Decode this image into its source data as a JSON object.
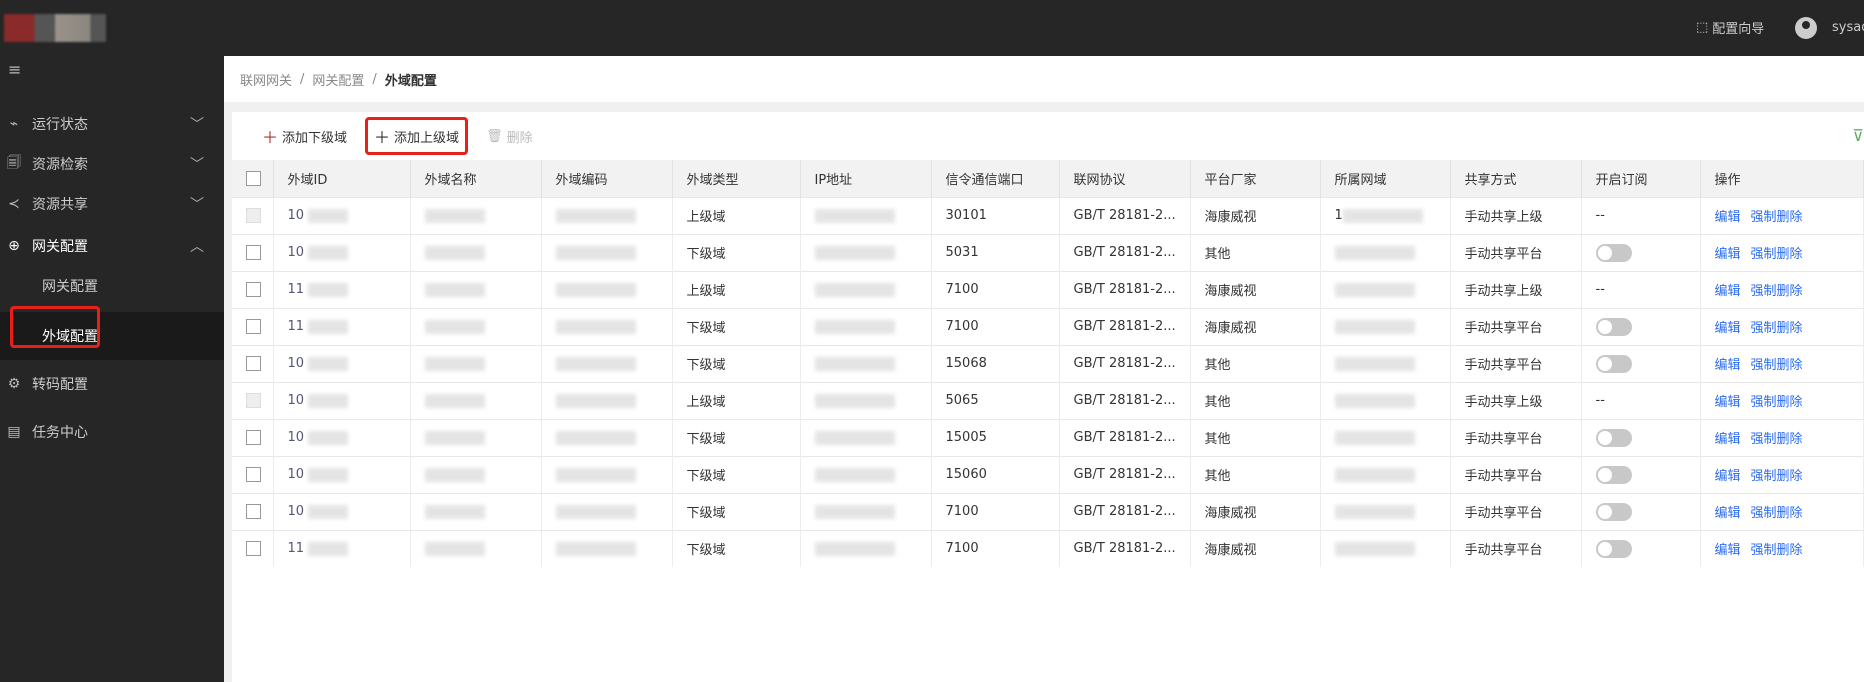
{
  "header": {
    "wizard": "配置向导",
    "user": "sysad"
  },
  "sidebar": {
    "items": [
      {
        "label": "运行状态",
        "icon": "monitor-icon",
        "chevron": "down"
      },
      {
        "label": "资源检索",
        "icon": "search-doc-icon",
        "chevron": "down"
      },
      {
        "label": "资源共享",
        "icon": "share-icon",
        "chevron": "down"
      },
      {
        "label": "网关配置",
        "icon": "globe-icon",
        "chevron": "up",
        "sub": [
          "网关配置",
          "外域配置"
        ]
      },
      {
        "label": "转码配置",
        "icon": "gear-icon"
      },
      {
        "label": "任务中心",
        "icon": "task-icon"
      }
    ]
  },
  "breadcrumb": [
    "联网网关",
    "网关配置",
    "外域配置"
  ],
  "toolbar": {
    "add_lower": "添加下级域",
    "add_upper": "添加上级域",
    "delete": "删除"
  },
  "table": {
    "headers": [
      "外域ID",
      "外域名称",
      "外域编码",
      "外域类型",
      "IP地址",
      "信令通信端口",
      "联网协议",
      "平台厂家",
      "所属网域",
      "共享方式",
      "开启订阅",
      "操作"
    ],
    "actions": [
      "编辑",
      "强制删除"
    ],
    "rows": [
      {
        "id": "10",
        "type": "上级域",
        "port": "30101",
        "protocol": "GB/T 28181-2...",
        "vendor": "海康威视",
        "domain": "1",
        "share": "手动共享上级",
        "sub": "--",
        "disabled": true
      },
      {
        "id": "10",
        "type": "下级域",
        "port": "5031",
        "protocol": "GB/T 28181-2...",
        "vendor": "其他",
        "domain": "",
        "share": "手动共享平台",
        "sub": "toggle"
      },
      {
        "id": "11",
        "type": "上级域",
        "port": "7100",
        "protocol": "GB/T 28181-2...",
        "vendor": "海康威视",
        "domain": "",
        "share": "手动共享上级",
        "sub": "--"
      },
      {
        "id": "11",
        "type": "下级域",
        "port": "7100",
        "protocol": "GB/T 28181-2...",
        "vendor": "海康威视",
        "domain": "",
        "share": "手动共享平台",
        "sub": "toggle"
      },
      {
        "id": "10",
        "type": "下级域",
        "port": "15068",
        "protocol": "GB/T 28181-2...",
        "vendor": "其他",
        "domain": "",
        "share": "手动共享平台",
        "sub": "toggle"
      },
      {
        "id": "10",
        "type": "上级域",
        "port": "5065",
        "protocol": "GB/T 28181-2...",
        "vendor": "其他",
        "domain": "",
        "share": "手动共享上级",
        "sub": "--",
        "disabled": true
      },
      {
        "id": "10",
        "type": "下级域",
        "port": "15005",
        "protocol": "GB/T 28181-2...",
        "vendor": "其他",
        "domain": "",
        "share": "手动共享平台",
        "sub": "toggle"
      },
      {
        "id": "10",
        "type": "下级域",
        "port": "15060",
        "protocol": "GB/T 28181-2...",
        "vendor": "其他",
        "domain": "",
        "share": "手动共享平台",
        "sub": "toggle"
      },
      {
        "id": "10",
        "type": "下级域",
        "port": "7100",
        "protocol": "GB/T 28181-2...",
        "vendor": "海康威视",
        "domain": "",
        "share": "手动共享平台",
        "sub": "toggle"
      },
      {
        "id": "11",
        "type": "下级域",
        "port": "7100",
        "protocol": "GB/T 28181-2...",
        "vendor": "海康威视",
        "domain": "",
        "share": "手动共享平台",
        "sub": "toggle"
      }
    ]
  },
  "colors": {
    "accent_link": "#2a6bf2",
    "highlight": "#e8201a",
    "topbar": "#262626"
  }
}
